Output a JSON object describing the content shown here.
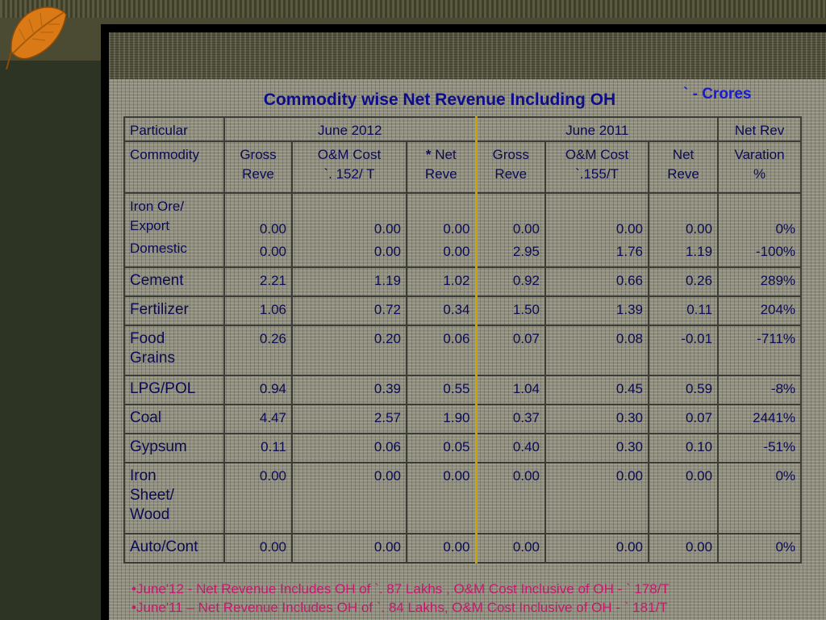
{
  "slide": {
    "title": "Commodity wise Net Revenue Including OH",
    "units_symbol": "`",
    "units": "- Crores"
  },
  "colors": {
    "title": "#0d0d8c",
    "units": "#1a1acc",
    "bullets": "#c8186e",
    "table_text": "#0a0a55"
  },
  "icons": {
    "corner": "leaf-icon"
  },
  "table": {
    "header1": {
      "particular": "Particular",
      "june2012": "June 2012",
      "june2011": "June 2011",
      "netrev": "Net Rev"
    },
    "header2": {
      "commodity": "Commodity",
      "gross_2012": [
        "Gross",
        "Reve"
      ],
      "om_2012": [
        "O&M Cost",
        "`. 152/ T"
      ],
      "net_2012_star": "*",
      "net_2012": [
        " Net",
        "Reve"
      ],
      "gross_2011": [
        "Gross",
        "Reve"
      ],
      "om_2011": [
        "O&M Cost",
        "`.155/T"
      ],
      "net_2011": [
        "Net",
        "Reve"
      ],
      "variation": [
        "Varation",
        "%"
      ]
    },
    "iron_ore": {
      "label_line1": "Iron Ore/",
      "label_line2": "Export",
      "label_line3": "Domestic",
      "export": [
        "0.00",
        "0.00",
        "0.00",
        "0.00",
        "0.00",
        "0.00",
        "0%"
      ],
      "domestic": [
        "0.00",
        "0.00",
        "0.00",
        "2.95",
        "1.76",
        "1.19",
        "-100%"
      ]
    },
    "rows": [
      {
        "label": "Cement",
        "values": [
          "2.21",
          "1.19",
          "1.02",
          "0.92",
          "0.66",
          "0.26",
          "289%"
        ]
      },
      {
        "label": "Fertilizer",
        "values": [
          "1.06",
          "0.72",
          "0.34",
          "1.50",
          "1.39",
          "0.11",
          "204%"
        ]
      },
      {
        "label_lines": [
          "Food",
          "Grains"
        ],
        "values": [
          "0.26",
          "0.20",
          "0.06",
          "0.07",
          "0.08",
          "-0.01",
          "-711%"
        ]
      },
      {
        "label": "LPG/POL",
        "values": [
          "0.94",
          "0.39",
          "0.55",
          "1.04",
          "0.45",
          "0.59",
          "-8%"
        ]
      },
      {
        "label": "Coal",
        "values": [
          "4.47",
          "2.57",
          "1.90",
          "0.37",
          "0.30",
          "0.07",
          "2441%"
        ]
      },
      {
        "label": "Gypsum",
        "values": [
          "0.11",
          "0.06",
          "0.05",
          "0.40",
          "0.30",
          "0.10",
          "-51%"
        ]
      },
      {
        "label_lines": [
          "Iron",
          "Sheet/",
          "Wood"
        ],
        "values": [
          "0.00",
          "0.00",
          "0.00",
          "0.00",
          "0.00",
          "0.00",
          "0%"
        ]
      },
      {
        "label": "Auto/Cont",
        "values": [
          "0.00",
          "0.00",
          "0.00",
          "0.00",
          "0.00",
          "0.00",
          "0%"
        ]
      }
    ]
  },
  "notes": [
    "•June'12 - Net Revenue Includes OH of  `. 87 Lakhs , O&M Cost Inclusive of OH  - ` 178/T",
    "•June'11 – Net Revenue Includes OH of  `. 84 Lakhs, O&M Cost Inclusive of OH  - ` 181/T"
  ]
}
